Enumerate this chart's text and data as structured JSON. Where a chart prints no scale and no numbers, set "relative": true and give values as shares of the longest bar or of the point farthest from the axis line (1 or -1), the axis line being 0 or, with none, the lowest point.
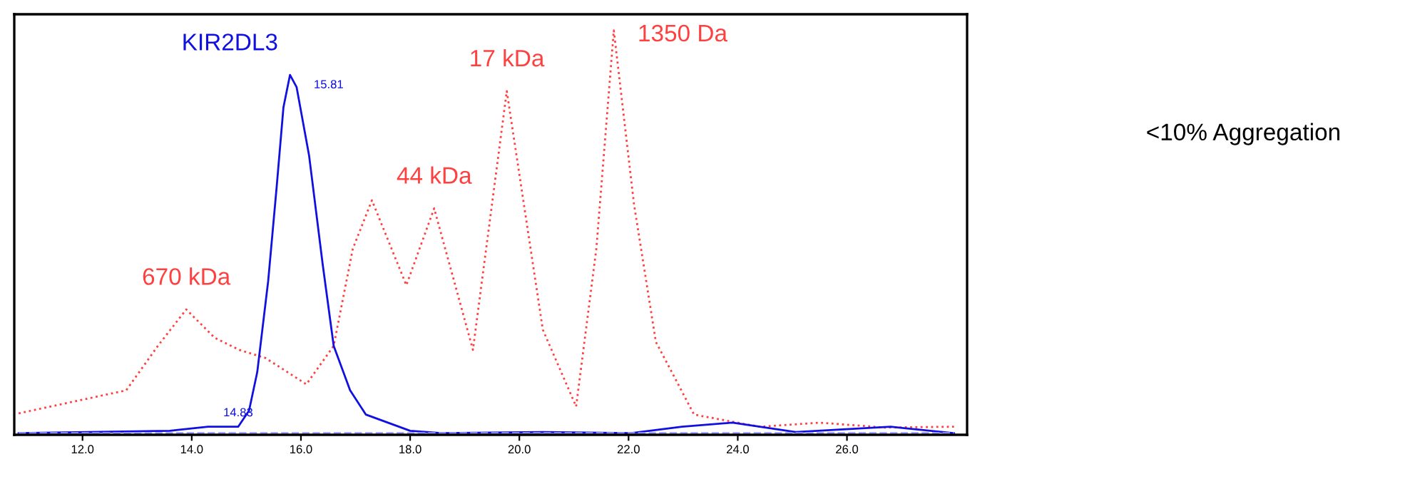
{
  "chart_data": {
    "type": "line",
    "relative": true,
    "xlim": [
      10.75,
      28.2
    ],
    "xticks": [
      {
        "value": 12,
        "label": "12.0"
      },
      {
        "value": 14,
        "label": "14.0"
      },
      {
        "value": 16,
        "label": "16.0"
      },
      {
        "value": 18,
        "label": "18.0"
      },
      {
        "value": 20,
        "label": "20.0"
      },
      {
        "value": 22,
        "label": "22.0"
      },
      {
        "value": 24,
        "label": "24.0"
      },
      {
        "value": 26,
        "label": "26.0"
      }
    ],
    "tick_labels": "x",
    "grid": false,
    "legend": false,
    "marker": "none",
    "series": [
      {
        "color": "#ff4040",
        "line_style": "dotted",
        "x": [
          10.83,
          12.8,
          13.38,
          13.9,
          14.42,
          14.87,
          15.35,
          16.1,
          16.6,
          16.95,
          17.3,
          17.93,
          18.44,
          19.15,
          19.77,
          20.43,
          21.04,
          21.41,
          21.73,
          22.1,
          22.5,
          23.2,
          24.4,
          25.5,
          26.7,
          27.96
        ],
        "values": [
          0.053,
          0.11,
          0.22,
          0.31,
          0.24,
          0.21,
          0.19,
          0.125,
          0.22,
          0.46,
          0.58,
          0.37,
          0.56,
          0.21,
          0.85,
          0.26,
          0.07,
          0.46,
          1.0,
          0.57,
          0.23,
          0.05,
          0.02,
          0.03,
          0.018,
          0.02
        ]
      },
      {
        "name": "KIR2DL3",
        "color": "#1010e0",
        "line_style": "solid",
        "x": [
          10.83,
          13.6,
          14.3,
          14.85,
          15.05,
          15.2,
          15.4,
          15.56,
          15.68,
          15.8,
          15.92,
          16.15,
          16.4,
          16.6,
          16.9,
          17.19,
          18.0,
          18.57,
          20.43,
          22.05,
          22.98,
          23.9,
          25.06,
          26.8,
          27.96
        ],
        "values": [
          0.004,
          0.01,
          0.02,
          0.02,
          0.06,
          0.155,
          0.38,
          0.62,
          0.81,
          0.89,
          0.86,
          0.69,
          0.42,
          0.22,
          0.11,
          0.05,
          0.01,
          0.004,
          0.007,
          0.004,
          0.02,
          0.03,
          0.007,
          0.02,
          0.004
        ]
      },
      {
        "color": "#9999ff",
        "line_style": "dashed",
        "x": [
          10.83,
          27.96
        ],
        "values": [
          0.004,
          0.004
        ]
      }
    ],
    "annotations": [
      {
        "text": "670 kDa",
        "x": 13.9,
        "y": 0.31
      },
      {
        "text": "44 kDa",
        "x": 18.44,
        "y": 0.56
      },
      {
        "text": "17 kDa",
        "x": 19.77,
        "y": 0.85
      },
      {
        "text": "1350 Da",
        "x": 21.73,
        "y": 1.0
      },
      {
        "text": "15.81",
        "x": 15.8,
        "y": 0.89
      },
      {
        "text": "14.83",
        "x": 14.85,
        "y": 0.02
      },
      "<10% Aggregation"
    ]
  }
}
